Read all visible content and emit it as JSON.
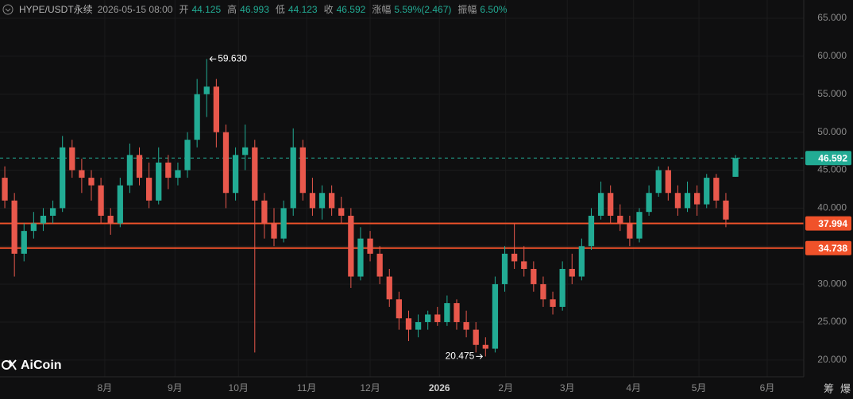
{
  "header": {
    "symbol": "HYPE/USDT永续",
    "time": "2026-05-15 08:00",
    "fields": [
      {
        "label": "开",
        "value": "44.125"
      },
      {
        "label": "高",
        "value": "46.993"
      },
      {
        "label": "低",
        "value": "44.123"
      },
      {
        "label": "收",
        "value": "46.592"
      },
      {
        "label": "涨幅",
        "value": "5.59%(2.467)"
      },
      {
        "label": "振幅",
        "value": "6.50%"
      }
    ]
  },
  "logo": "AiCoin",
  "corner_icons": [
    "筹",
    "爆"
  ],
  "chart_data": {
    "type": "candlestick",
    "up_color": "#22ab94",
    "down_color": "#e8584c",
    "candles": [
      [
        44,
        45.5,
        40,
        41
      ],
      [
        41,
        42,
        31,
        34
      ],
      [
        34,
        38,
        33,
        37
      ],
      [
        37,
        39.5,
        36,
        38
      ],
      [
        38,
        40,
        37,
        39
      ],
      [
        39,
        41,
        38,
        40
      ],
      [
        40,
        49.5,
        39.5,
        48
      ],
      [
        48,
        49,
        44,
        45
      ],
      [
        45,
        46.5,
        42,
        44
      ],
      [
        44,
        45,
        41,
        43
      ],
      [
        43,
        44,
        38,
        39
      ],
      [
        39,
        40,
        36.5,
        38
      ],
      [
        38,
        44,
        37.5,
        43
      ],
      [
        43,
        48.5,
        42,
        47
      ],
      [
        47,
        48,
        43,
        44
      ],
      [
        44,
        46,
        40,
        41
      ],
      [
        41,
        48,
        40.5,
        46
      ],
      [
        46,
        47,
        42.5,
        44
      ],
      [
        44,
        46,
        43,
        45
      ],
      [
        45,
        50,
        44,
        49
      ],
      [
        49,
        57,
        48,
        55
      ],
      [
        55,
        59.63,
        52,
        56
      ],
      [
        56,
        57,
        48,
        50
      ],
      [
        50,
        51,
        40,
        42
      ],
      [
        42,
        48,
        41,
        47
      ],
      [
        47,
        51,
        45,
        48
      ],
      [
        48,
        49,
        21,
        41
      ],
      [
        41,
        42,
        36,
        38
      ],
      [
        38,
        40,
        35,
        36
      ],
      [
        36,
        41,
        35.5,
        40
      ],
      [
        40,
        50.5,
        39,
        48
      ],
      [
        48,
        49,
        41,
        42
      ],
      [
        42,
        44,
        39,
        40
      ],
      [
        40,
        43,
        38.5,
        42
      ],
      [
        42,
        43,
        39,
        40
      ],
      [
        40,
        41.5,
        38,
        39
      ],
      [
        39,
        40,
        29.5,
        31
      ],
      [
        31,
        37.5,
        30.5,
        36
      ],
      [
        36,
        37,
        33,
        34
      ],
      [
        34,
        35,
        30,
        31
      ],
      [
        31,
        32,
        27,
        28
      ],
      [
        28,
        29,
        24,
        25.5
      ],
      [
        25.5,
        26.5,
        22.5,
        24
      ],
      [
        24,
        26,
        23,
        25
      ],
      [
        25,
        26.5,
        24,
        26
      ],
      [
        26,
        27,
        24.5,
        25
      ],
      [
        25,
        28.5,
        24.5,
        27.5
      ],
      [
        27.5,
        28,
        24,
        25
      ],
      [
        25,
        26.5,
        23,
        24
      ],
      [
        24,
        25,
        21,
        22
      ],
      [
        22,
        23,
        20.475,
        21.5
      ],
      [
        21.5,
        31,
        21,
        30
      ],
      [
        30,
        35,
        29,
        34
      ],
      [
        34,
        38,
        32,
        33
      ],
      [
        33,
        35,
        31,
        32
      ],
      [
        32,
        33,
        29,
        30
      ],
      [
        30,
        31,
        27,
        28
      ],
      [
        28,
        29,
        26,
        27
      ],
      [
        27,
        33,
        26.5,
        32
      ],
      [
        32,
        34,
        30,
        31
      ],
      [
        31,
        36,
        30.5,
        35
      ],
      [
        35,
        40,
        34.5,
        39
      ],
      [
        39,
        43.5,
        38.5,
        42
      ],
      [
        42,
        43,
        38,
        39
      ],
      [
        39,
        40.5,
        37,
        38
      ],
      [
        38,
        39,
        35,
        36
      ],
      [
        36,
        40,
        35.5,
        39.5
      ],
      [
        39.5,
        43,
        39,
        42
      ],
      [
        42,
        45.5,
        41.5,
        45
      ],
      [
        45,
        45.5,
        41,
        42
      ],
      [
        42,
        43,
        39,
        40
      ],
      [
        40,
        43.5,
        39.5,
        42
      ],
      [
        42,
        43,
        39,
        40.5
      ],
      [
        40.5,
        44.5,
        40,
        44
      ],
      [
        44,
        44.5,
        40,
        41
      ],
      [
        41,
        42,
        37.5,
        38.5
      ],
      [
        44.125,
        46.993,
        44.123,
        46.592
      ]
    ],
    "max_label": "59.630",
    "min_label": "20.475",
    "xlim": [
      -0.5,
      83.1
    ],
    "ylim": [
      17.8,
      67.4
    ],
    "xticks": [
      {
        "value": 10.4,
        "label": "8月"
      },
      {
        "value": 17.7,
        "label": "9月"
      },
      {
        "value": 24.3,
        "label": "10月"
      },
      {
        "value": 31.4,
        "label": "11月"
      },
      {
        "value": 38.0,
        "label": "12月"
      },
      {
        "value": 45.2,
        "label": "2026"
      },
      {
        "value": 52.1,
        "label": "2月"
      },
      {
        "value": 58.5,
        "label": "3月"
      },
      {
        "value": 65.4,
        "label": "4月"
      },
      {
        "value": 72.2,
        "label": "5月"
      },
      {
        "value": 79.3,
        "label": "6月"
      }
    ],
    "yticks": [
      {
        "value": 20,
        "label": "20.000"
      },
      {
        "value": 25,
        "label": "25.000"
      },
      {
        "value": 30,
        "label": "30.000"
      },
      {
        "value": 35,
        "label": "35.000"
      },
      {
        "value": 40,
        "label": "40.000"
      },
      {
        "value": 45,
        "label": "45.000"
      },
      {
        "value": 50,
        "label": "50.000"
      },
      {
        "value": 55,
        "label": "55.000"
      },
      {
        "value": 60,
        "label": "60.000"
      },
      {
        "value": 65,
        "label": "65.000"
      }
    ],
    "grid": true,
    "price_lines": [
      {
        "value": 46.592,
        "label": "46.592",
        "color": "#22ab94",
        "style": "dashed"
      },
      {
        "value": 37.994,
        "label": "37.994",
        "color": "#f0522a",
        "style": "solid"
      },
      {
        "value": 34.738,
        "label": "34.738",
        "color": "#f0522a",
        "style": "solid"
      }
    ]
  }
}
